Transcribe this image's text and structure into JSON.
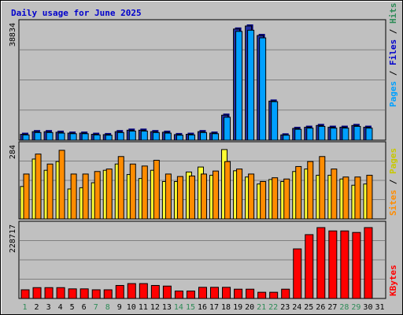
{
  "chart_data": {
    "type": "bar",
    "title": "Daily usage for June 2025",
    "categories": [
      "1",
      "2",
      "3",
      "4",
      "5",
      "6",
      "7",
      "8",
      "9",
      "10",
      "11",
      "12",
      "13",
      "14",
      "15",
      "16",
      "17",
      "18",
      "19",
      "20",
      "21",
      "22",
      "23",
      "24",
      "25",
      "26",
      "27",
      "28",
      "29",
      "30",
      "31"
    ],
    "weekend_days": [
      "1",
      "7",
      "8",
      "14",
      "15",
      "21",
      "22",
      "28",
      "29"
    ],
    "weekend_color": "#2e8b57",
    "weekday_color": "#000000",
    "panels": [
      {
        "id": "hits",
        "ymax_label": "38834",
        "ymax": 38834,
        "series": [
          {
            "name": "Pages",
            "color": "#1f2fa6",
            "values": [
              2000,
              2900,
              2900,
              2700,
              2400,
              2400,
              2000,
              1900,
              2900,
              3400,
              3400,
              2900,
              2700,
              1900,
              2000,
              2900,
              2400,
              8500,
              37800,
              38834,
              35600,
              13300,
              1800,
              4000,
              4400,
              5000,
              4400,
              4400,
              5000,
              4400,
              null
            ]
          },
          {
            "name": "Files",
            "color": "#00a0ff",
            "values": [
              1800,
              2600,
              2600,
              2400,
              2200,
              2200,
              1800,
              1700,
              2600,
              3100,
              3100,
              2600,
              2400,
              1700,
              1800,
              2600,
              2200,
              7800,
              37000,
              37400,
              34800,
              13100,
              1700,
              3700,
              4100,
              4700,
              4100,
              4100,
              4700,
              4100,
              null
            ]
          },
          {
            "name": "Hits",
            "color": "#2e8b57",
            "values": []
          }
        ]
      },
      {
        "id": "visits",
        "ymax_label": "284",
        "ymax": 284,
        "series": [
          {
            "name": "Pages",
            "color": "#ffff33",
            "values": [
              130,
              240,
              195,
              230,
              120,
              125,
              145,
              195,
              220,
              178,
              162,
              195,
              150,
              150,
              188,
              208,
              175,
              278,
              193,
              168,
              140,
              158,
              150,
              190,
              200,
              175,
              175,
              160,
              135,
              140,
              null
            ]
          },
          {
            "name": "Sites",
            "color": "#ff8c00",
            "values": [
              180,
              260,
              220,
              275,
              180,
              180,
              190,
              200,
              250,
              220,
              212,
              235,
              180,
              170,
              172,
              180,
              192,
              230,
              200,
              180,
              150,
              165,
              160,
              210,
              230,
              250,
              200,
              168,
              168,
              175,
              null
            ]
          }
        ]
      },
      {
        "id": "kbytes",
        "ymax_label": "228717",
        "ymax": 228717,
        "series": [
          {
            "name": "KBytes",
            "color": "#ff0000",
            "values": [
              28000,
              35000,
              35000,
              35000,
              31000,
              31000,
              28000,
              28000,
              42000,
              48000,
              48000,
              42000,
              40000,
              24000,
              24000,
              36000,
              36000,
              36000,
              30000,
              30000,
              20000,
              20000,
              30000,
              160000,
              206000,
              228717,
              218000,
              218000,
              213000,
              228717,
              null
            ]
          }
        ]
      }
    ],
    "grid": true
  }
}
